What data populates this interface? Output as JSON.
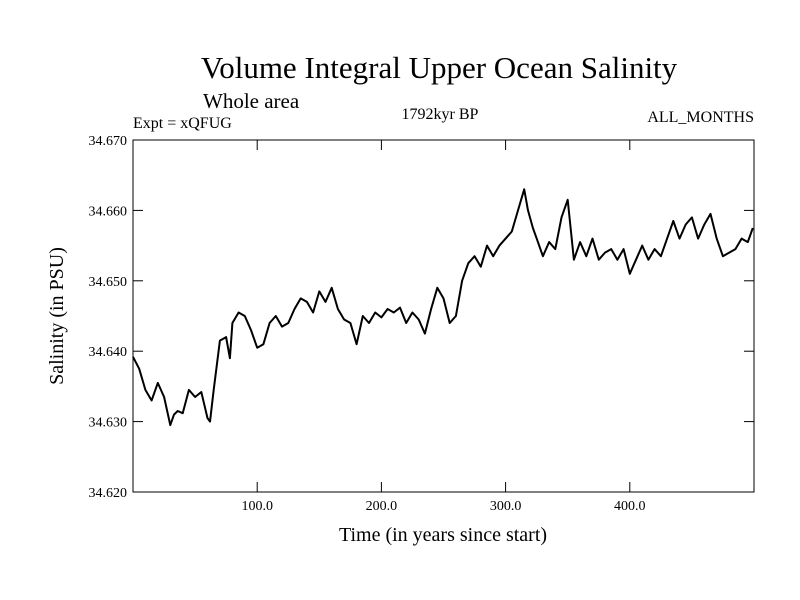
{
  "chart_data": {
    "type": "line",
    "title": "Volume Integral Upper Ocean Salinity",
    "subtitle": "Whole area",
    "expt_label": "Expt = xQFUG",
    "period_label": "1792kyr BP",
    "months_label": "ALL_MONTHS",
    "xlabel": "Time (in years since start)",
    "ylabel": "Salinity (in PSU)",
    "xlim": [
      0,
      500
    ],
    "ylim": [
      34.62,
      34.67
    ],
    "x_ticks": [
      100.0,
      200.0,
      300.0,
      400.0
    ],
    "x_tick_labels": [
      "100.0",
      "200.0",
      "300.0",
      "400.0"
    ],
    "y_ticks": [
      34.62,
      34.63,
      34.64,
      34.65,
      34.66,
      34.67
    ],
    "y_tick_labels": [
      "34.620",
      "34.630",
      "34.640",
      "34.650",
      "34.660",
      "34.670"
    ],
    "series": [
      {
        "name": "Salinity",
        "color": "#000000",
        "x": [
          0,
          5,
          10,
          15,
          20,
          25,
          30,
          33,
          36,
          40,
          45,
          50,
          55,
          60,
          62,
          65,
          70,
          75,
          78,
          80,
          85,
          90,
          95,
          100,
          105,
          110,
          115,
          120,
          125,
          130,
          135,
          140,
          145,
          150,
          155,
          160,
          165,
          170,
          175,
          180,
          185,
          190,
          195,
          200,
          205,
          210,
          215,
          220,
          225,
          230,
          235,
          240,
          245,
          250,
          255,
          260,
          265,
          270,
          275,
          280,
          285,
          290,
          295,
          300,
          305,
          310,
          315,
          318,
          322,
          325,
          330,
          335,
          340,
          345,
          350,
          355,
          360,
          365,
          370,
          375,
          380,
          385,
          390,
          395,
          400,
          405,
          410,
          415,
          420,
          425,
          430,
          435,
          440,
          445,
          450,
          455,
          460,
          465,
          470,
          475,
          480,
          485,
          490,
          495,
          499
        ],
        "values": [
          34.6392,
          34.6375,
          34.6345,
          34.633,
          34.6355,
          34.6335,
          34.6295,
          34.631,
          34.6315,
          34.6312,
          34.6345,
          34.6335,
          34.6342,
          34.6305,
          34.63,
          34.6345,
          34.6415,
          34.642,
          34.639,
          34.644,
          34.6455,
          34.645,
          34.643,
          34.6405,
          34.641,
          34.644,
          34.645,
          34.6435,
          34.644,
          34.646,
          34.6475,
          34.647,
          34.6455,
          34.6485,
          34.647,
          34.649,
          34.646,
          34.6445,
          34.644,
          34.641,
          34.645,
          34.644,
          34.6455,
          34.6448,
          34.646,
          34.6455,
          34.6462,
          34.644,
          34.6455,
          34.6445,
          34.6425,
          34.646,
          34.649,
          34.6475,
          34.644,
          34.645,
          34.65,
          34.6525,
          34.6535,
          34.652,
          34.655,
          34.6535,
          34.655,
          34.656,
          34.657,
          34.66,
          34.663,
          34.66,
          34.6575,
          34.656,
          34.6535,
          34.6555,
          34.6545,
          34.659,
          34.6615,
          34.653,
          34.6555,
          34.6535,
          34.656,
          34.653,
          34.654,
          34.6545,
          34.653,
          34.6545,
          34.651,
          34.653,
          34.655,
          34.653,
          34.6545,
          34.6535,
          34.656,
          34.6585,
          34.656,
          34.658,
          34.659,
          34.656,
          34.658,
          34.6595,
          34.656,
          34.6535,
          34.654,
          34.6545,
          34.656,
          34.6555,
          34.6575
        ]
      }
    ]
  }
}
